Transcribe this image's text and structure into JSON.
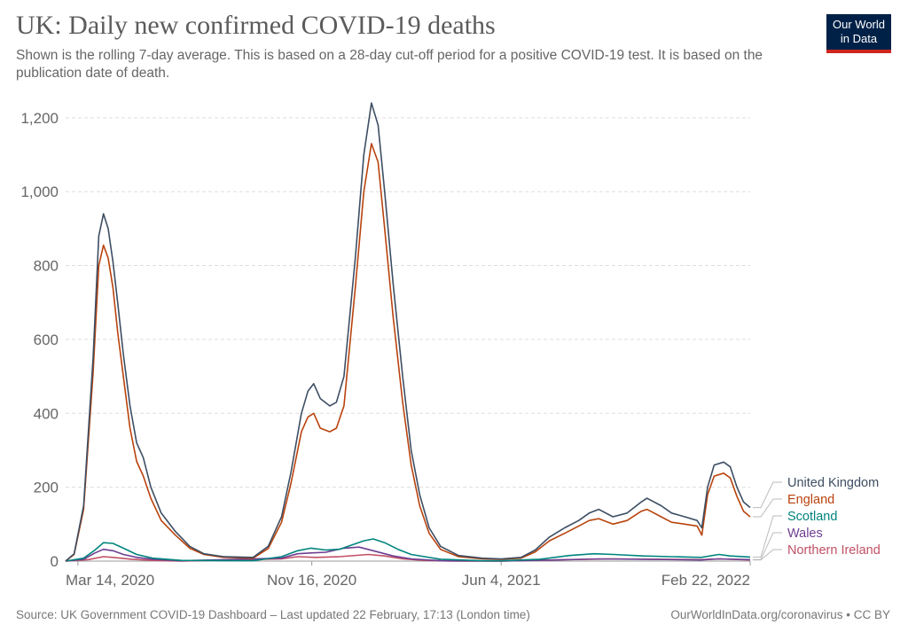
{
  "header": {
    "title": "UK: Daily new confirmed COVID-19 deaths",
    "subtitle": "Shown is the rolling 7-day average. This is based on a 28-day cut-off period for a positive COVID-19 test. It is based on the publication date of death.",
    "logo_line1": "Our World",
    "logo_line2": "in Data"
  },
  "footer": {
    "source": "Source: UK Government COVID-19 Dashboard – Last updated 22 February, 17:13 (London time)",
    "credit": "OurWorldInData.org/coronavirus • CC BY"
  },
  "chart_data": {
    "type": "line",
    "title": "UK: Daily new confirmed COVID-19 deaths",
    "subtitle": "Shown is the rolling 7-day average. This is based on a 28-day cut-off period for a positive COVID-19 test. It is based on the publication date of death.",
    "x_range": [
      "2020-03-01",
      "2022-02-22"
    ],
    "x_ticks": [
      "Mar 14, 2020",
      "Nov 16, 2020",
      "Jun 4, 2021",
      "Feb 22, 2022"
    ],
    "x_tick_dates": [
      "2020-03-14",
      "2020-11-16",
      "2021-06-04",
      "2022-02-22"
    ],
    "ylim": [
      0,
      1250
    ],
    "y_ticks": [
      0,
      200,
      400,
      600,
      800,
      1000,
      1200
    ],
    "y_tick_labels": [
      "0",
      "200",
      "400",
      "600",
      "800",
      "1,000",
      "1,200"
    ],
    "grid": "horizontal dashed",
    "legend_placement": "right end labels",
    "series": [
      {
        "name": "United Kingdom",
        "color": "#3d4e63",
        "points": [
          [
            "2020-03-01",
            0
          ],
          [
            "2020-03-10",
            20
          ],
          [
            "2020-03-20",
            150
          ],
          [
            "2020-03-30",
            550
          ],
          [
            "2020-04-05",
            880
          ],
          [
            "2020-04-10",
            940
          ],
          [
            "2020-04-15",
            900
          ],
          [
            "2020-04-20",
            810
          ],
          [
            "2020-04-25",
            700
          ],
          [
            "2020-05-01",
            560
          ],
          [
            "2020-05-08",
            420
          ],
          [
            "2020-05-15",
            320
          ],
          [
            "2020-05-22",
            280
          ],
          [
            "2020-05-30",
            200
          ],
          [
            "2020-06-10",
            130
          ],
          [
            "2020-06-25",
            80
          ],
          [
            "2020-07-10",
            40
          ],
          [
            "2020-07-25",
            20
          ],
          [
            "2020-08-15",
            12
          ],
          [
            "2020-09-15",
            10
          ],
          [
            "2020-10-01",
            40
          ],
          [
            "2020-10-15",
            120
          ],
          [
            "2020-10-25",
            240
          ],
          [
            "2020-11-05",
            400
          ],
          [
            "2020-11-12",
            460
          ],
          [
            "2020-11-18",
            480
          ],
          [
            "2020-11-25",
            440
          ],
          [
            "2020-12-05",
            420
          ],
          [
            "2020-12-12",
            430
          ],
          [
            "2020-12-20",
            500
          ],
          [
            "2021-01-01",
            820
          ],
          [
            "2021-01-10",
            1100
          ],
          [
            "2021-01-18",
            1240
          ],
          [
            "2021-01-25",
            1180
          ],
          [
            "2021-02-01",
            1000
          ],
          [
            "2021-02-10",
            750
          ],
          [
            "2021-02-20",
            500
          ],
          [
            "2021-03-01",
            300
          ],
          [
            "2021-03-10",
            180
          ],
          [
            "2021-03-20",
            90
          ],
          [
            "2021-04-01",
            40
          ],
          [
            "2021-04-20",
            15
          ],
          [
            "2021-05-15",
            8
          ],
          [
            "2021-06-04",
            6
          ],
          [
            "2021-06-25",
            10
          ],
          [
            "2021-07-10",
            30
          ],
          [
            "2021-07-25",
            65
          ],
          [
            "2021-08-10",
            90
          ],
          [
            "2021-08-25",
            110
          ],
          [
            "2021-09-05",
            130
          ],
          [
            "2021-09-15",
            140
          ],
          [
            "2021-09-30",
            120
          ],
          [
            "2021-10-15",
            130
          ],
          [
            "2021-10-30",
            160
          ],
          [
            "2021-11-05",
            170
          ],
          [
            "2021-11-20",
            150
          ],
          [
            "2021-12-01",
            130
          ],
          [
            "2021-12-15",
            120
          ],
          [
            "2021-12-28",
            110
          ],
          [
            "2022-01-02",
            90
          ],
          [
            "2022-01-08",
            200
          ],
          [
            "2022-01-15",
            260
          ],
          [
            "2022-01-25",
            268
          ],
          [
            "2022-02-01",
            255
          ],
          [
            "2022-02-08",
            200
          ],
          [
            "2022-02-15",
            160
          ],
          [
            "2022-02-22",
            145
          ]
        ]
      },
      {
        "name": "England",
        "color": "#b9430d",
        "points": [
          [
            "2020-03-01",
            0
          ],
          [
            "2020-03-10",
            18
          ],
          [
            "2020-03-20",
            140
          ],
          [
            "2020-03-30",
            510
          ],
          [
            "2020-04-05",
            800
          ],
          [
            "2020-04-10",
            855
          ],
          [
            "2020-04-15",
            820
          ],
          [
            "2020-04-20",
            740
          ],
          [
            "2020-04-25",
            620
          ],
          [
            "2020-05-01",
            500
          ],
          [
            "2020-05-08",
            360
          ],
          [
            "2020-05-15",
            270
          ],
          [
            "2020-05-22",
            230
          ],
          [
            "2020-05-30",
            170
          ],
          [
            "2020-06-10",
            110
          ],
          [
            "2020-06-25",
            70
          ],
          [
            "2020-07-10",
            35
          ],
          [
            "2020-07-25",
            18
          ],
          [
            "2020-08-15",
            10
          ],
          [
            "2020-09-15",
            8
          ],
          [
            "2020-10-01",
            34
          ],
          [
            "2020-10-15",
            105
          ],
          [
            "2020-10-25",
            210
          ],
          [
            "2020-11-05",
            350
          ],
          [
            "2020-11-12",
            390
          ],
          [
            "2020-11-18",
            400
          ],
          [
            "2020-11-25",
            360
          ],
          [
            "2020-12-05",
            350
          ],
          [
            "2020-12-12",
            360
          ],
          [
            "2020-12-20",
            420
          ],
          [
            "2021-01-01",
            740
          ],
          [
            "2021-01-10",
            1000
          ],
          [
            "2021-01-18",
            1130
          ],
          [
            "2021-01-25",
            1080
          ],
          [
            "2021-02-01",
            900
          ],
          [
            "2021-02-10",
            660
          ],
          [
            "2021-02-20",
            430
          ],
          [
            "2021-03-01",
            260
          ],
          [
            "2021-03-10",
            150
          ],
          [
            "2021-03-20",
            75
          ],
          [
            "2021-04-01",
            32
          ],
          [
            "2021-04-20",
            12
          ],
          [
            "2021-05-15",
            6
          ],
          [
            "2021-06-04",
            5
          ],
          [
            "2021-06-25",
            8
          ],
          [
            "2021-07-10",
            25
          ],
          [
            "2021-07-25",
            55
          ],
          [
            "2021-08-10",
            75
          ],
          [
            "2021-08-25",
            95
          ],
          [
            "2021-09-05",
            110
          ],
          [
            "2021-09-15",
            115
          ],
          [
            "2021-09-30",
            100
          ],
          [
            "2021-10-15",
            110
          ],
          [
            "2021-10-30",
            135
          ],
          [
            "2021-11-05",
            140
          ],
          [
            "2021-11-20",
            120
          ],
          [
            "2021-12-01",
            105
          ],
          [
            "2021-12-15",
            100
          ],
          [
            "2021-12-28",
            95
          ],
          [
            "2022-01-02",
            70
          ],
          [
            "2022-01-08",
            180
          ],
          [
            "2022-01-15",
            230
          ],
          [
            "2022-01-25",
            238
          ],
          [
            "2022-02-01",
            225
          ],
          [
            "2022-02-08",
            175
          ],
          [
            "2022-02-15",
            135
          ],
          [
            "2022-02-22",
            120
          ]
        ]
      },
      {
        "name": "Scotland",
        "color": "#00847e",
        "points": [
          [
            "2020-03-01",
            0
          ],
          [
            "2020-03-20",
            8
          ],
          [
            "2020-04-01",
            30
          ],
          [
            "2020-04-10",
            50
          ],
          [
            "2020-04-20",
            48
          ],
          [
            "2020-05-01",
            35
          ],
          [
            "2020-05-15",
            18
          ],
          [
            "2020-06-01",
            8
          ],
          [
            "2020-07-01",
            2
          ],
          [
            "2020-09-15",
            1
          ],
          [
            "2020-10-15",
            12
          ],
          [
            "2020-11-01",
            28
          ],
          [
            "2020-11-15",
            35
          ],
          [
            "2020-12-01",
            30
          ],
          [
            "2020-12-15",
            32
          ],
          [
            "2021-01-10",
            55
          ],
          [
            "2021-01-20",
            60
          ],
          [
            "2021-02-01",
            50
          ],
          [
            "2021-02-15",
            32
          ],
          [
            "2021-03-01",
            18
          ],
          [
            "2021-04-01",
            5
          ],
          [
            "2021-05-15",
            1
          ],
          [
            "2021-06-04",
            1
          ],
          [
            "2021-07-15",
            5
          ],
          [
            "2021-08-15",
            15
          ],
          [
            "2021-09-10",
            20
          ],
          [
            "2021-10-01",
            18
          ],
          [
            "2021-11-01",
            14
          ],
          [
            "2021-12-01",
            12
          ],
          [
            "2022-01-01",
            10
          ],
          [
            "2022-01-20",
            18
          ],
          [
            "2022-02-01",
            14
          ],
          [
            "2022-02-22",
            11
          ]
        ]
      },
      {
        "name": "Wales",
        "color": "#6d3e91",
        "points": [
          [
            "2020-03-01",
            0
          ],
          [
            "2020-03-20",
            5
          ],
          [
            "2020-04-01",
            22
          ],
          [
            "2020-04-10",
            32
          ],
          [
            "2020-04-20",
            28
          ],
          [
            "2020-05-01",
            18
          ],
          [
            "2020-05-15",
            10
          ],
          [
            "2020-06-01",
            5
          ],
          [
            "2020-07-01",
            1
          ],
          [
            "2020-10-15",
            8
          ],
          [
            "2020-11-01",
            20
          ],
          [
            "2020-11-15",
            22
          ],
          [
            "2020-12-01",
            24
          ],
          [
            "2020-12-20",
            35
          ],
          [
            "2021-01-05",
            38
          ],
          [
            "2021-01-20",
            28
          ],
          [
            "2021-02-10",
            14
          ],
          [
            "2021-03-01",
            6
          ],
          [
            "2021-04-01",
            1
          ],
          [
            "2021-06-04",
            0
          ],
          [
            "2021-08-01",
            3
          ],
          [
            "2021-09-15",
            6
          ],
          [
            "2021-11-01",
            5
          ],
          [
            "2022-01-01",
            3
          ],
          [
            "2022-01-20",
            6
          ],
          [
            "2022-02-22",
            4
          ]
        ]
      },
      {
        "name": "Northern Ireland",
        "color": "#c15065",
        "points": [
          [
            "2020-03-01",
            0
          ],
          [
            "2020-03-25",
            4
          ],
          [
            "2020-04-10",
            12
          ],
          [
            "2020-04-20",
            10
          ],
          [
            "2020-05-10",
            5
          ],
          [
            "2020-06-01",
            2
          ],
          [
            "2020-07-01",
            0
          ],
          [
            "2020-10-15",
            6
          ],
          [
            "2020-11-01",
            12
          ],
          [
            "2020-11-20",
            10
          ],
          [
            "2020-12-15",
            12
          ],
          [
            "2021-01-15",
            18
          ],
          [
            "2021-02-01",
            14
          ],
          [
            "2021-02-20",
            6
          ],
          [
            "2021-03-15",
            2
          ],
          [
            "2021-04-15",
            0
          ],
          [
            "2021-06-04",
            0
          ],
          [
            "2021-08-15",
            4
          ],
          [
            "2021-09-30",
            6
          ],
          [
            "2021-11-15",
            5
          ],
          [
            "2022-01-01",
            4
          ],
          [
            "2022-01-20",
            6
          ],
          [
            "2022-02-22",
            3
          ]
        ]
      }
    ]
  }
}
